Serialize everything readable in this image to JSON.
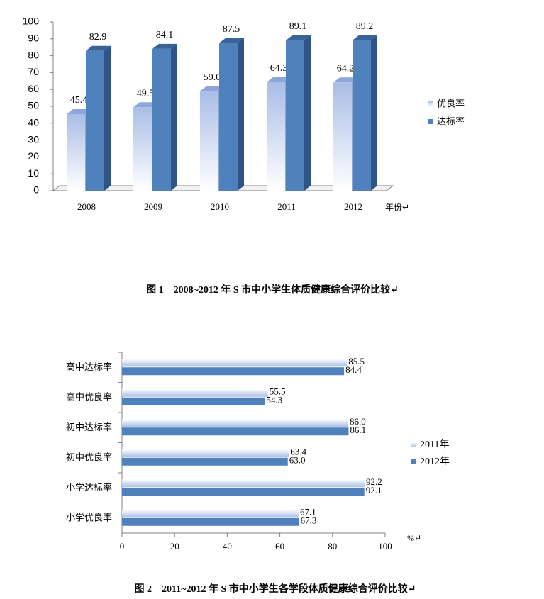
{
  "chart_data": [
    {
      "type": "bar3d",
      "categories": [
        "2008",
        "2009",
        "2010",
        "2011",
        "2012"
      ],
      "series": [
        {
          "name": "优良率",
          "color": "#b9c9ea",
          "values": [
            45.4,
            49.5,
            59.0,
            64.3,
            64.2
          ],
          "value_labels": [
            "45.4",
            "49.5",
            "59.0",
            "64.3",
            "64.2"
          ]
        },
        {
          "name": "达标率",
          "color": "#4f81bd",
          "values": [
            82.9,
            84.1,
            87.5,
            89.1,
            89.2
          ],
          "value_labels": [
            "82.9",
            "84.1",
            "87.5",
            "89.1",
            "89.2"
          ]
        }
      ],
      "ylim": [
        0,
        100
      ],
      "yticks": [
        0,
        10,
        20,
        30,
        40,
        50,
        60,
        70,
        80,
        90,
        100
      ],
      "x_label": "年份↵",
      "caption": "图 1　2008~2012 年 S 市中小学生体质健康综合评价比较↵"
    },
    {
      "type": "barh",
      "categories": [
        "高中达标率",
        "高中优良率",
        "初中达标率",
        "初中优良率",
        "小学达标率",
        "小学优良率"
      ],
      "series": [
        {
          "name": "2011年",
          "color": "#b9c9ea",
          "values": [
            85.5,
            55.5,
            86.0,
            63.4,
            92.2,
            67.1
          ],
          "value_labels": [
            "85.5",
            "55.5",
            "86.0",
            "63.4",
            "92.2",
            "67.1"
          ]
        },
        {
          "name": "2012年",
          "color": "#4f81bd",
          "values": [
            84.4,
            54.3,
            86.1,
            63.0,
            92.1,
            67.3
          ],
          "value_labels": [
            "84.4",
            "54.3",
            "86.1",
            "63.0",
            "92.1",
            "67.3"
          ]
        }
      ],
      "xlim": [
        0,
        100
      ],
      "xticks": [
        0,
        20,
        40,
        60,
        80,
        100
      ],
      "x_label": "%↵",
      "caption": "图 2　2011~2012 年 S 市中小学生各学段体质健康综合评价比较↵"
    }
  ]
}
